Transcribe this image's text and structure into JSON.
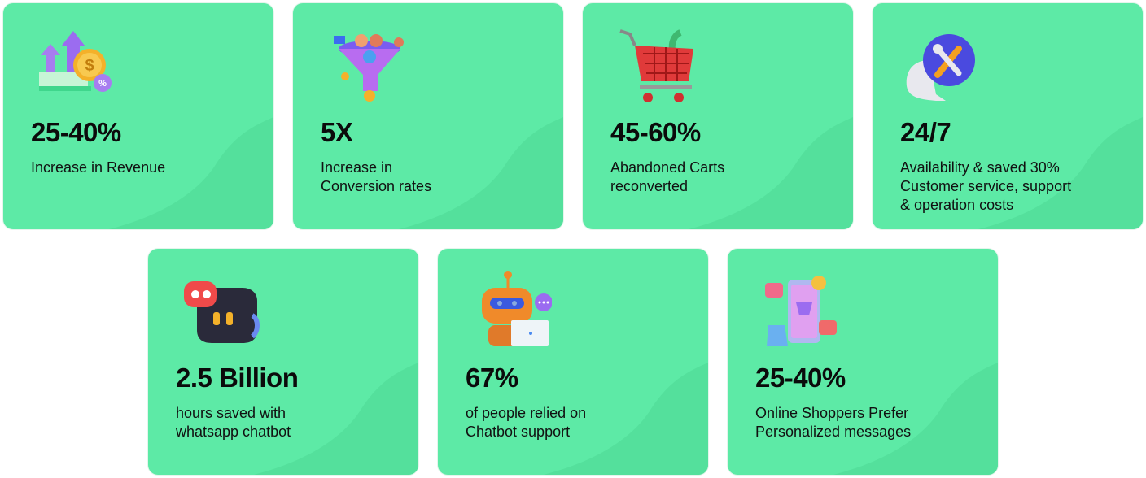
{
  "cards": [
    {
      "stat": "25-40%",
      "lines": [
        "Increase in Revenue"
      ]
    },
    {
      "stat": "5X",
      "lines": [
        "Increase in",
        "Conversion rates"
      ]
    },
    {
      "stat": "45-60%",
      "lines": [
        "Abandoned Carts",
        "reconverted"
      ]
    },
    {
      "stat": "24/7",
      "lines": [
        "Availability & saved 30%",
        "Customer service, support",
        "& operation costs"
      ]
    },
    {
      "stat": "2.5 Billion",
      "lines": [
        "hours saved with",
        "whatsapp chatbot"
      ]
    },
    {
      "stat": "67%",
      "lines": [
        "of people relied on",
        "Chatbot support"
      ]
    },
    {
      "stat": "25-40%",
      "lines": [
        "Online Shoppers Prefer",
        "Personalized messages"
      ]
    }
  ]
}
